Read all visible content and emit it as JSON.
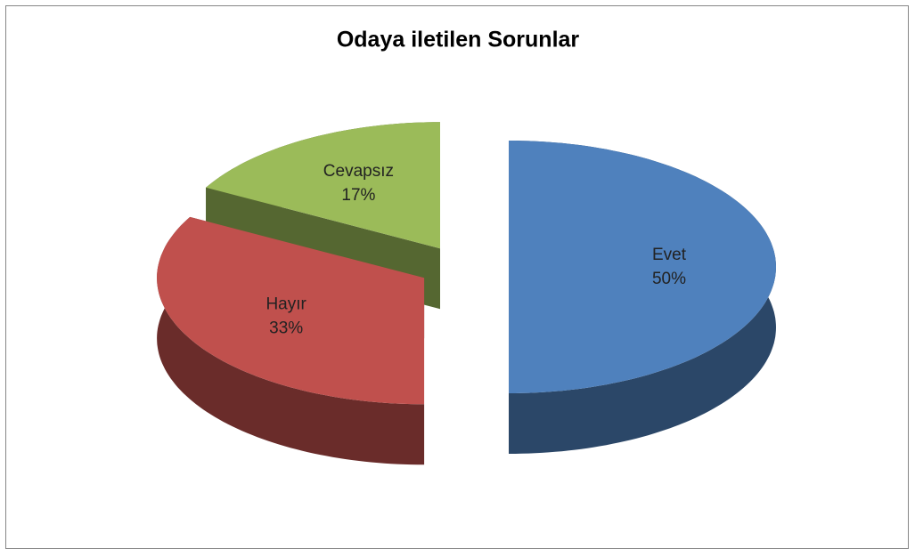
{
  "chart_data": {
    "type": "pie",
    "title": "Odaya iletilen Sorunlar",
    "categories": [
      "Evet",
      "Hayır",
      "Cevapsız"
    ],
    "values": [
      50,
      33,
      17
    ],
    "value_labels": [
      "50%",
      "33%",
      "17%"
    ],
    "colors": [
      "#4f81bd",
      "#c0504d",
      "#9bbb59"
    ]
  }
}
